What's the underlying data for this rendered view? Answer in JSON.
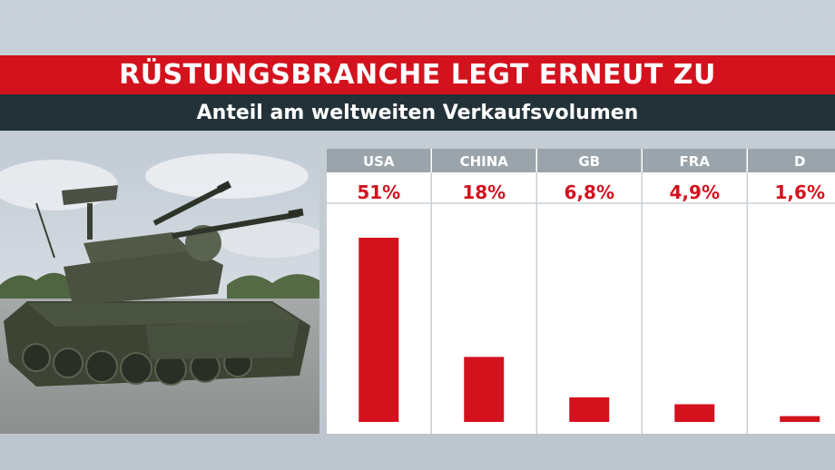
{
  "header": {
    "title": "RÜSTUNGSBRANCHE LEGT ERNEUT ZU",
    "subtitle": "Anteil am weltweiten Verkaufsvolumen"
  },
  "photo": {
    "subject": "anti-aircraft tank (Gepard)"
  },
  "colors": {
    "accent": "#d3121e",
    "dark": "#223238",
    "header_cell": "#9aa4aa"
  },
  "chart_data": {
    "type": "bar",
    "title": "",
    "categories": [
      "USA",
      "CHINA",
      "GB",
      "FRA",
      "D"
    ],
    "values": [
      51,
      18,
      6.8,
      4.9,
      1.6
    ],
    "value_labels": [
      "51%",
      "18%",
      "6,8%",
      "4,9%",
      "1,6%"
    ],
    "unit": "%",
    "ylim": [
      0,
      51
    ],
    "grid": false,
    "legend": "none"
  }
}
